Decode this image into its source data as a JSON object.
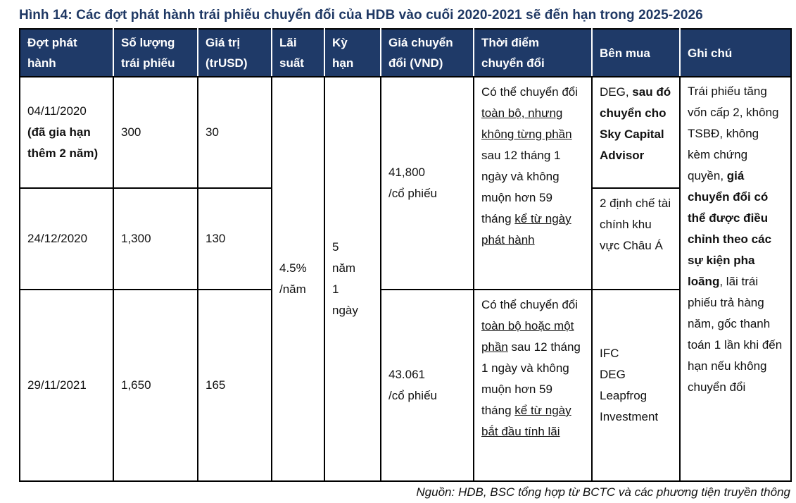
{
  "title": "Hình 14: Các đợt phát hành trái phiếu chuyển đổi của HDB vào cuối 2020-2021 sẽ đến hạn trong 2025-2026",
  "source": "Nguồn: HDB, BSC tổng hợp từ BCTC và các phương tiện truyền thông",
  "colors": {
    "header_bg": "#1f3a68",
    "header_text": "#ffffff",
    "title_color": "#1f3864",
    "border": "#000000"
  },
  "table": {
    "columns": [
      {
        "label": "Đợt phát\nhành"
      },
      {
        "label": "Số lượng\ntrái phiếu"
      },
      {
        "label": "Giá trị\n(trUSD)"
      },
      {
        "label": "Lãi\nsuất"
      },
      {
        "label": "Kỳ\nhạn"
      },
      {
        "label": "Giá chuyển\nđổi (VND)"
      },
      {
        "label": "Thời điểm\nchuyển đổi"
      },
      {
        "label": "Bên mua"
      },
      {
        "label": "Ghi chú"
      }
    ],
    "tranches": [
      {
        "date_segments": [
          {
            "text": "04/11/2020\n",
            "style": "normal"
          },
          {
            "text": "(đã gia hạn thêm 2 năm)",
            "style": "bold"
          }
        ],
        "quantity": "300",
        "value": "30",
        "buyer_segments": [
          {
            "text": "DEG, ",
            "style": "normal"
          },
          {
            "text": "sau đó chuyển cho Sky Capital Advisor",
            "style": "bold"
          }
        ]
      },
      {
        "date_segments": [
          {
            "text": "24/12/2020",
            "style": "normal"
          }
        ],
        "quantity": "1,300",
        "value": "130",
        "buyer_segments": [
          {
            "text": "2 định chế tài chính khu vực Châu Á",
            "style": "normal"
          }
        ]
      },
      {
        "date_segments": [
          {
            "text": "29/11/2021",
            "style": "normal"
          }
        ],
        "quantity": "1,650",
        "value": "165",
        "buyer_segments": [
          {
            "text": "IFC\nDEG\nLeapfrog\nInvestment",
            "style": "normal"
          }
        ]
      }
    ],
    "merged": {
      "interest_rate": "4.5%\n/năm",
      "term": "5\nnăm\n1\nngày",
      "notes_segments": [
        {
          "text": "Trái phiếu tăng vốn cấp 2, không TSBĐ, không kèm chứng quyền, ",
          "style": "normal"
        },
        {
          "text": "giá chuyển đổi có thể được điều chỉnh theo các sự kiện pha loãng",
          "style": "bold"
        },
        {
          "text": ", lãi trái phiếu trả hàng năm, gốc thanh toán 1 lần khi đến hạn nếu không chuyển đổi",
          "style": "normal"
        }
      ]
    },
    "conversion_groups": [
      {
        "price": "41,800\n/cổ phiếu",
        "timing_segments": [
          {
            "text": "Có thể chuyển đổi ",
            "style": "normal"
          },
          {
            "text": "toàn bộ, nhưng không từng phần",
            "style": "underline"
          },
          {
            "text": " sau 12 tháng 1 ngày và không muộn hơn 59 tháng ",
            "style": "normal"
          },
          {
            "text": "kể từ ngày phát hành",
            "style": "underline"
          }
        ]
      },
      {
        "price": "43.061\n/cổ phiếu",
        "timing_segments": [
          {
            "text": "Có thể chuyển đổi ",
            "style": "normal"
          },
          {
            "text": "toàn bộ hoặc một phần",
            "style": "underline"
          },
          {
            "text": " sau 12 tháng 1 ngày và không muộn hơn 59 tháng ",
            "style": "normal"
          },
          {
            "text": "kể từ ngày bắt đầu tính lãi",
            "style": "underline"
          }
        ]
      }
    ]
  }
}
